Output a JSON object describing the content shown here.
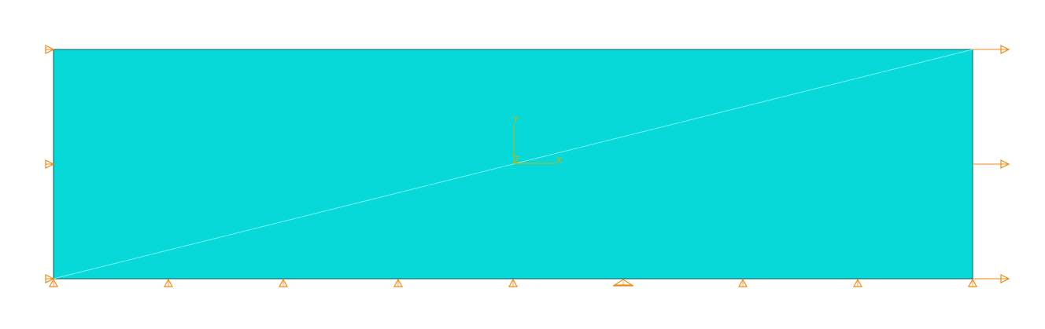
{
  "model": {
    "fill_color": "#07d9d9",
    "edge_color": "#0b5e5e",
    "diagonal_color": "#7ff0f0",
    "boundary_color": "#f08a14"
  },
  "axes": {
    "color": "#c8b400",
    "x_label": "X",
    "y_label": "Y",
    "z_label": "Z"
  },
  "supports": {
    "left_edge_icon": "roller-support-icon",
    "bottom_edge_icon": "pin-support-icon",
    "right_edge_icon": "load-arrow-icon"
  }
}
